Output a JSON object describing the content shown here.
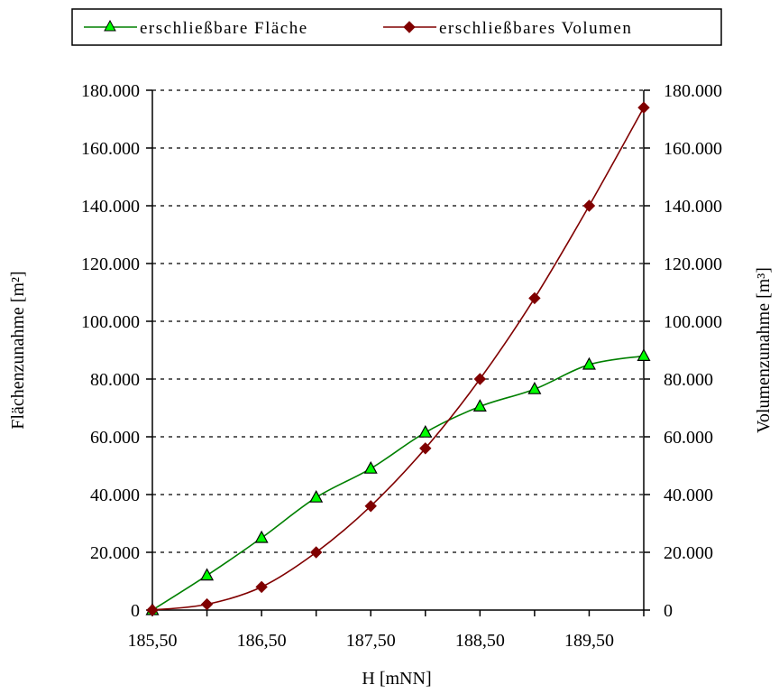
{
  "chart_data": {
    "type": "line",
    "x": [
      185.5,
      186.0,
      186.5,
      187.0,
      187.5,
      188.0,
      188.5,
      189.0,
      189.5,
      190.0
    ],
    "xticks": [
      185.5,
      186.5,
      187.5,
      188.5,
      189.5
    ],
    "xtick_labels": [
      "185,50",
      "186,50",
      "187,50",
      "188,50",
      "189,50"
    ],
    "xlim": [
      185.5,
      190.0
    ],
    "xlabel": "H [mNN]",
    "ylabel_left": "Flächenzunahme [m²]",
    "ylabel_right": "Volumenzunahme [m³]",
    "ylim": [
      0,
      180000
    ],
    "yticks": [
      0,
      20000,
      40000,
      60000,
      80000,
      100000,
      120000,
      140000,
      160000,
      180000
    ],
    "ytick_labels": [
      "0",
      "20.000",
      "40.000",
      "60.000",
      "80.000",
      "100.000",
      "120.000",
      "140.000",
      "160.000",
      "180.000"
    ],
    "grid": "horizontal dashed",
    "legend_position": "top",
    "series": [
      {
        "name": "erschließbare Fläche",
        "axis": "left",
        "color": "#008000",
        "marker": "triangle",
        "marker_fill": "#00ff00",
        "values": [
          0,
          12000,
          25000,
          39000,
          49000,
          61500,
          70500,
          76500,
          85000,
          88000
        ]
      },
      {
        "name": "erschließbares Volumen",
        "axis": "right",
        "color": "#800000",
        "marker": "diamond",
        "marker_fill": "#800000",
        "values": [
          0,
          2000,
          8000,
          20000,
          36000,
          56000,
          80000,
          108000,
          140000,
          174000
        ]
      }
    ]
  }
}
